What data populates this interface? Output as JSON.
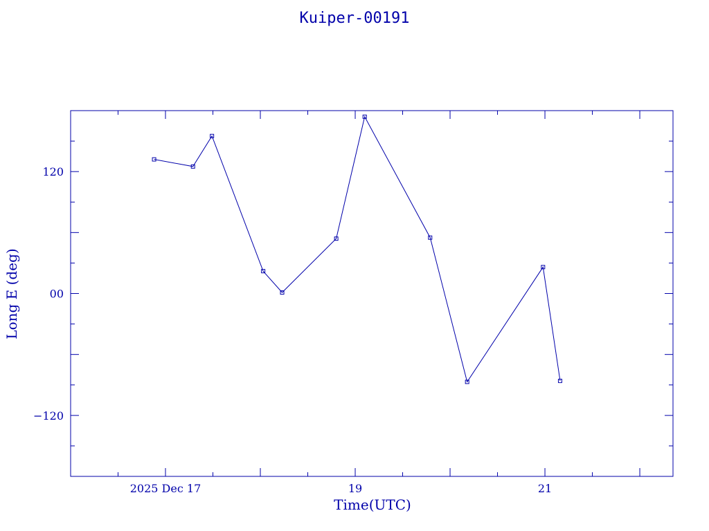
{
  "chart_data": {
    "type": "line",
    "title": "Kuiper-00191",
    "xlabel": "Time(UTC)",
    "ylabel": "Long E (deg)",
    "x_unit": "days (Dec 2025, UTC)",
    "xlim": [
      16.0,
      22.35
    ],
    "ylim": [
      -180,
      180
    ],
    "x_ticks": [
      {
        "value": 17,
        "label": "2025 Dec 17"
      },
      {
        "value": 19,
        "label": "19"
      },
      {
        "value": 21,
        "label": "21"
      }
    ],
    "y_ticks": [
      {
        "value": 120,
        "label": "120"
      },
      {
        "value": 0,
        "label": "00"
      },
      {
        "value": -120,
        "label": "−120"
      }
    ],
    "x": [
      16.88,
      17.29,
      17.49,
      18.03,
      18.23,
      18.8,
      19.1,
      19.79,
      20.18,
      20.98,
      21.16
    ],
    "y": [
      132,
      125,
      155,
      22,
      1,
      54,
      174,
      55,
      -87,
      26,
      -86
    ],
    "color": "#0000aa",
    "marker": "square",
    "grid": false,
    "legend": "none"
  }
}
